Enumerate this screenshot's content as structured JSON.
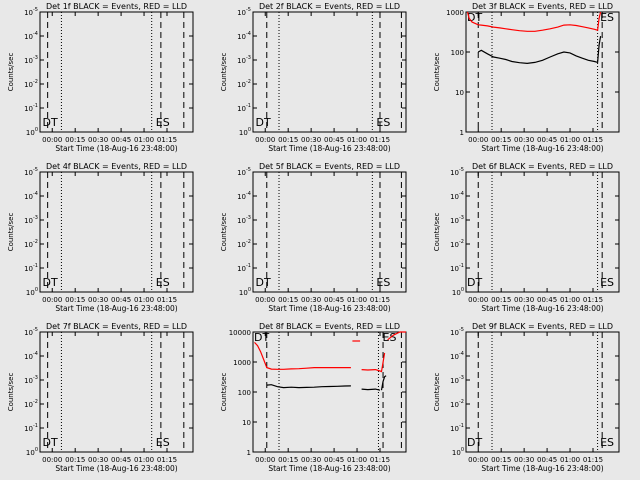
{
  "chart_data": [
    {
      "type": "line",
      "title": "Det 1f BLACK = Events, RED = LLD",
      "xlabel": "Start Time (18-Aug-16 23:48:00)",
      "ylabel": "Counts/sec",
      "yscale": "log",
      "ylim": [
        1,
        10000
      ],
      "ytick_labels": [
        {
          "base": "10",
          "exp": "0"
        },
        {
          "base": "10",
          "exp": "-1"
        },
        {
          "base": "10",
          "exp": "-2"
        },
        {
          "base": "10",
          "exp": "-3"
        },
        {
          "base": "10",
          "exp": "-4"
        },
        {
          "base": "10",
          "exp": "-5"
        }
      ],
      "x_minutes_range": [
        0,
        100
      ],
      "xtick_labels": [
        "00:00",
        "00:15",
        "00:30",
        "00:45",
        "01:00",
        "01:15"
      ],
      "annotations": [
        {
          "text": "DT",
          "x_minutes": 1
        },
        {
          "text": "ES",
          "x_minutes": 75
        }
      ],
      "vlines": [
        {
          "style": "dashed",
          "x_minutes": 5
        },
        {
          "style": "dotted",
          "x_minutes": 14
        },
        {
          "style": "dotted",
          "x_minutes": 73
        },
        {
          "style": "dashed",
          "x_minutes": 79
        },
        {
          "style": "dashed",
          "x_minutes": 94
        }
      ],
      "series": [],
      "grid": false,
      "background": "#e8e8e8"
    },
    {
      "type": "line",
      "title": "Det 2f BLACK = Events, RED = LLD",
      "xlabel": "Start Time (18-Aug-16 23:48:00)",
      "ylabel": "Counts/sec",
      "yscale": "log",
      "ylim": [
        1,
        10000
      ],
      "ytick_labels": [
        {
          "base": "10",
          "exp": "0"
        },
        {
          "base": "10",
          "exp": "-1"
        },
        {
          "base": "10",
          "exp": "-2"
        },
        {
          "base": "10",
          "exp": "-3"
        },
        {
          "base": "10",
          "exp": "-4"
        },
        {
          "base": "10",
          "exp": "-5"
        }
      ],
      "x_minutes_range": [
        0,
        100
      ],
      "xtick_labels": [
        "00:00",
        "00:15",
        "00:30",
        "00:45",
        "01:00",
        "01:15"
      ],
      "annotations": [
        {
          "text": "DT",
          "x_minutes": 1
        },
        {
          "text": "ES",
          "x_minutes": 80
        }
      ],
      "vlines": [
        {
          "style": "dashed",
          "x_minutes": 9
        },
        {
          "style": "dotted",
          "x_minutes": 17
        },
        {
          "style": "dotted",
          "x_minutes": 78
        },
        {
          "style": "dashed",
          "x_minutes": 83
        },
        {
          "style": "dashed",
          "x_minutes": 97
        }
      ],
      "series": [],
      "grid": false,
      "background": "#e8e8e8"
    },
    {
      "type": "line",
      "title": "Det 3f BLACK = Events, RED = LLD",
      "xlabel": "Start Time (18-Aug-16 23:48:00)",
      "ylabel": "Counts/sec",
      "yscale": "log",
      "ylim": [
        1,
        1000
      ],
      "ytick_labels": [
        {
          "base": "1",
          "exp": ""
        },
        {
          "base": "10",
          "exp": ""
        },
        {
          "base": "100",
          "exp": ""
        },
        {
          "base": "1000",
          "exp": ""
        }
      ],
      "x_minutes_range": [
        0,
        100
      ],
      "xtick_labels": [
        "00:00",
        "00:15",
        "00:30",
        "00:45",
        "01:00",
        "01:15"
      ],
      "annotations": [
        {
          "text": "DT",
          "x_minutes": 0
        },
        {
          "text": "ES",
          "x_minutes": 87
        }
      ],
      "vlines": [
        {
          "style": "dashed",
          "x_minutes": 8
        },
        {
          "style": "dotted",
          "x_minutes": 17
        },
        {
          "style": "dotted",
          "x_minutes": 86
        },
        {
          "style": "dashed",
          "x_minutes": 89
        },
        {
          "style": "dashed",
          "x_minutes": 100
        }
      ],
      "series": [
        {
          "color": "#ff0000",
          "x": [
            1,
            2,
            4,
            6,
            8,
            10,
            14,
            18,
            22,
            26,
            30,
            35,
            40,
            45,
            50,
            55,
            60,
            64,
            68,
            72,
            76,
            80,
            84,
            86,
            87,
            88
          ],
          "y": [
            1000,
            700,
            560,
            520,
            480,
            470,
            450,
            420,
            400,
            380,
            360,
            340,
            330,
            330,
            350,
            380,
            420,
            470,
            480,
            460,
            430,
            400,
            370,
            350,
            700,
            1000
          ]
        },
        {
          "color": "#000000",
          "x": [
            8,
            10,
            14,
            18,
            22,
            26,
            30,
            35,
            40,
            45,
            50,
            55,
            60,
            64,
            68,
            72,
            76,
            80,
            84,
            86,
            87,
            88
          ],
          "y": [
            100,
            110,
            90,
            75,
            70,
            65,
            58,
            54,
            52,
            55,
            62,
            75,
            90,
            100,
            95,
            80,
            70,
            62,
            58,
            55,
            150,
            250
          ]
        }
      ],
      "grid": false,
      "background": "#e8e8e8"
    },
    {
      "type": "line",
      "title": "Det 4f BLACK = Events, RED = LLD",
      "xlabel": "Start Time (18-Aug-16 23:48:00)",
      "ylabel": "Counts/sec",
      "yscale": "log",
      "ylim": [
        1,
        10000
      ],
      "ytick_labels": [
        {
          "base": "10",
          "exp": "0"
        },
        {
          "base": "10",
          "exp": "-1"
        },
        {
          "base": "10",
          "exp": "-2"
        },
        {
          "base": "10",
          "exp": "-3"
        },
        {
          "base": "10",
          "exp": "-4"
        },
        {
          "base": "10",
          "exp": "-5"
        }
      ],
      "x_minutes_range": [
        0,
        100
      ],
      "xtick_labels": [
        "00:00",
        "00:15",
        "00:30",
        "00:45",
        "01:00",
        "01:15"
      ],
      "annotations": [
        {
          "text": "DT",
          "x_minutes": 1
        },
        {
          "text": "ES",
          "x_minutes": 75
        }
      ],
      "vlines": [
        {
          "style": "dashed",
          "x_minutes": 5
        },
        {
          "style": "dotted",
          "x_minutes": 14
        },
        {
          "style": "dotted",
          "x_minutes": 73
        },
        {
          "style": "dashed",
          "x_minutes": 79
        },
        {
          "style": "dashed",
          "x_minutes": 94
        }
      ],
      "series": [],
      "grid": false,
      "background": "#e8e8e8"
    },
    {
      "type": "line",
      "title": "Det 5f BLACK = Events, RED = LLD",
      "xlabel": "Start Time (18-Aug-16 23:48:00)",
      "ylabel": "Counts/sec",
      "yscale": "log",
      "ylim": [
        1,
        10000
      ],
      "ytick_labels": [
        {
          "base": "10",
          "exp": "0"
        },
        {
          "base": "10",
          "exp": "-1"
        },
        {
          "base": "10",
          "exp": "-2"
        },
        {
          "base": "10",
          "exp": "-3"
        },
        {
          "base": "10",
          "exp": "-4"
        },
        {
          "base": "10",
          "exp": "-5"
        }
      ],
      "x_minutes_range": [
        0,
        100
      ],
      "xtick_labels": [
        "00:00",
        "00:15",
        "00:30",
        "00:45",
        "01:00",
        "01:15"
      ],
      "annotations": [
        {
          "text": "DT",
          "x_minutes": 1
        },
        {
          "text": "ES",
          "x_minutes": 80
        }
      ],
      "vlines": [
        {
          "style": "dashed",
          "x_minutes": 9
        },
        {
          "style": "dotted",
          "x_minutes": 17
        },
        {
          "style": "dotted",
          "x_minutes": 78
        },
        {
          "style": "dashed",
          "x_minutes": 83
        },
        {
          "style": "dashed",
          "x_minutes": 97
        }
      ],
      "series": [],
      "grid": false,
      "background": "#e8e8e8"
    },
    {
      "type": "line",
      "title": "Det 6f BLACK = Events, RED = LLD",
      "xlabel": "Start Time (18-Aug-16 23:48:00)",
      "ylabel": "Counts/sec",
      "yscale": "log",
      "ylim": [
        1,
        10000
      ],
      "ytick_labels": [
        {
          "base": "10",
          "exp": "0"
        },
        {
          "base": "10",
          "exp": "-1"
        },
        {
          "base": "10",
          "exp": "-2"
        },
        {
          "base": "10",
          "exp": "-3"
        },
        {
          "base": "10",
          "exp": "-4"
        },
        {
          "base": "10",
          "exp": "-5"
        }
      ],
      "x_minutes_range": [
        0,
        100
      ],
      "xtick_labels": [
        "00:00",
        "00:15",
        "00:30",
        "00:45",
        "01:00",
        "01:15"
      ],
      "annotations": [
        {
          "text": "DT",
          "x_minutes": 0
        },
        {
          "text": "ES",
          "x_minutes": 87
        }
      ],
      "vlines": [
        {
          "style": "dashed",
          "x_minutes": 8
        },
        {
          "style": "dotted",
          "x_minutes": 17
        },
        {
          "style": "dotted",
          "x_minutes": 86
        },
        {
          "style": "dashed",
          "x_minutes": 89
        },
        {
          "style": "dashed",
          "x_minutes": 100
        }
      ],
      "series": [],
      "grid": false,
      "background": "#e8e8e8"
    },
    {
      "type": "line",
      "title": "Det 7f BLACK = Events, RED = LLD",
      "xlabel": "Start Time (18-Aug-16 23:48:00)",
      "ylabel": "Counts/sec",
      "yscale": "log",
      "ylim": [
        1,
        10000
      ],
      "ytick_labels": [
        {
          "base": "10",
          "exp": "0"
        },
        {
          "base": "10",
          "exp": "-1"
        },
        {
          "base": "10",
          "exp": "-2"
        },
        {
          "base": "10",
          "exp": "-3"
        },
        {
          "base": "10",
          "exp": "-4"
        },
        {
          "base": "10",
          "exp": "-5"
        }
      ],
      "x_minutes_range": [
        0,
        100
      ],
      "xtick_labels": [
        "00:00",
        "00:15",
        "00:30",
        "00:45",
        "01:00",
        "01:15"
      ],
      "annotations": [
        {
          "text": "DT",
          "x_minutes": 1
        },
        {
          "text": "ES",
          "x_minutes": 75
        }
      ],
      "vlines": [
        {
          "style": "dashed",
          "x_minutes": 5
        },
        {
          "style": "dotted",
          "x_minutes": 14
        },
        {
          "style": "dotted",
          "x_minutes": 73
        },
        {
          "style": "dashed",
          "x_minutes": 79
        },
        {
          "style": "dashed",
          "x_minutes": 94
        }
      ],
      "series": [],
      "grid": false,
      "background": "#e8e8e8"
    },
    {
      "type": "line",
      "title": "Det 8f BLACK = Events, RED = LLD",
      "xlabel": "Start Time (18-Aug-16 23:48:00)",
      "ylabel": "Counts/sec",
      "yscale": "log",
      "ylim": [
        1,
        10000
      ],
      "ytick_labels": [
        {
          "base": "1",
          "exp": ""
        },
        {
          "base": "10",
          "exp": ""
        },
        {
          "base": "100",
          "exp": ""
        },
        {
          "base": "1000",
          "exp": ""
        },
        {
          "base": "10000",
          "exp": ""
        }
      ],
      "x_minutes_range": [
        0,
        100
      ],
      "xtick_labels": [
        "00:00",
        "00:15",
        "00:30",
        "00:45",
        "01:00",
        "01:15"
      ],
      "annotations": [
        {
          "text": "DT",
          "x_minutes": 0
        },
        {
          "text": "ES",
          "x_minutes": 84
        }
      ],
      "vlines": [
        {
          "style": "dashed",
          "x_minutes": 9
        },
        {
          "style": "dotted",
          "x_minutes": 17
        },
        {
          "style": "dotted",
          "x_minutes": 82
        },
        {
          "style": "dashed",
          "x_minutes": 85
        },
        {
          "style": "dashed",
          "x_minutes": 97
        }
      ],
      "series": [
        {
          "color": "#ff0000",
          "x": [
            1,
            3,
            5,
            7,
            9,
            12,
            16,
            20,
            25,
            30,
            35,
            40,
            50,
            60,
            64,
            65,
            70,
            71,
            75,
            80,
            83,
            84,
            86,
            88,
            92,
            96,
            100
          ],
          "y": [
            4500,
            3500,
            2200,
            1200,
            650,
            580,
            570,
            570,
            590,
            600,
            620,
            650,
            650,
            650,
            650,
            5000,
            5000,
            560,
            540,
            560,
            500,
            480,
            2000,
            5500,
            8000,
            10000,
            10000
          ],
          "segments": [
            [
              0,
              14
            ],
            [
              15,
              16
            ],
            [
              17,
              22
            ],
            [
              23,
              26
            ]
          ]
        },
        {
          "color": "#000000",
          "x": [
            9,
            12,
            16,
            20,
            25,
            30,
            35,
            40,
            45,
            50,
            55,
            60,
            64,
            71,
            75,
            80,
            83,
            84,
            85,
            86,
            87
          ],
          "y": [
            170,
            175,
            150,
            140,
            145,
            140,
            142,
            145,
            150,
            152,
            155,
            158,
            160,
            125,
            120,
            125,
            115,
            115,
            220,
            320,
            350
          ],
          "segments": [
            [
              0,
              12
            ],
            [
              13,
              16
            ],
            [
              17,
              20
            ]
          ]
        }
      ],
      "grid": false,
      "background": "#e8e8e8"
    },
    {
      "type": "line",
      "title": "Det 9f BLACK = Events, RED = LLD",
      "xlabel": "Start Time (18-Aug-16 23:48:00)",
      "ylabel": "Counts/sec",
      "yscale": "log",
      "ylim": [
        1,
        10000
      ],
      "ytick_labels": [
        {
          "base": "10",
          "exp": "0"
        },
        {
          "base": "10",
          "exp": "-1"
        },
        {
          "base": "10",
          "exp": "-2"
        },
        {
          "base": "10",
          "exp": "-3"
        },
        {
          "base": "10",
          "exp": "-4"
        },
        {
          "base": "10",
          "exp": "-5"
        }
      ],
      "x_minutes_range": [
        0,
        100
      ],
      "xtick_labels": [
        "00:00",
        "00:15",
        "00:30",
        "00:45",
        "01:00",
        "01:15"
      ],
      "annotations": [
        {
          "text": "DT",
          "x_minutes": 0
        },
        {
          "text": "ES",
          "x_minutes": 87
        }
      ],
      "vlines": [
        {
          "style": "dashed",
          "x_minutes": 8
        },
        {
          "style": "dotted",
          "x_minutes": 17
        },
        {
          "style": "dotted",
          "x_minutes": 86
        },
        {
          "style": "dashed",
          "x_minutes": 89
        },
        {
          "style": "dashed",
          "x_minutes": 100
        }
      ],
      "series": [],
      "grid": false,
      "background": "#e8e8e8"
    }
  ]
}
